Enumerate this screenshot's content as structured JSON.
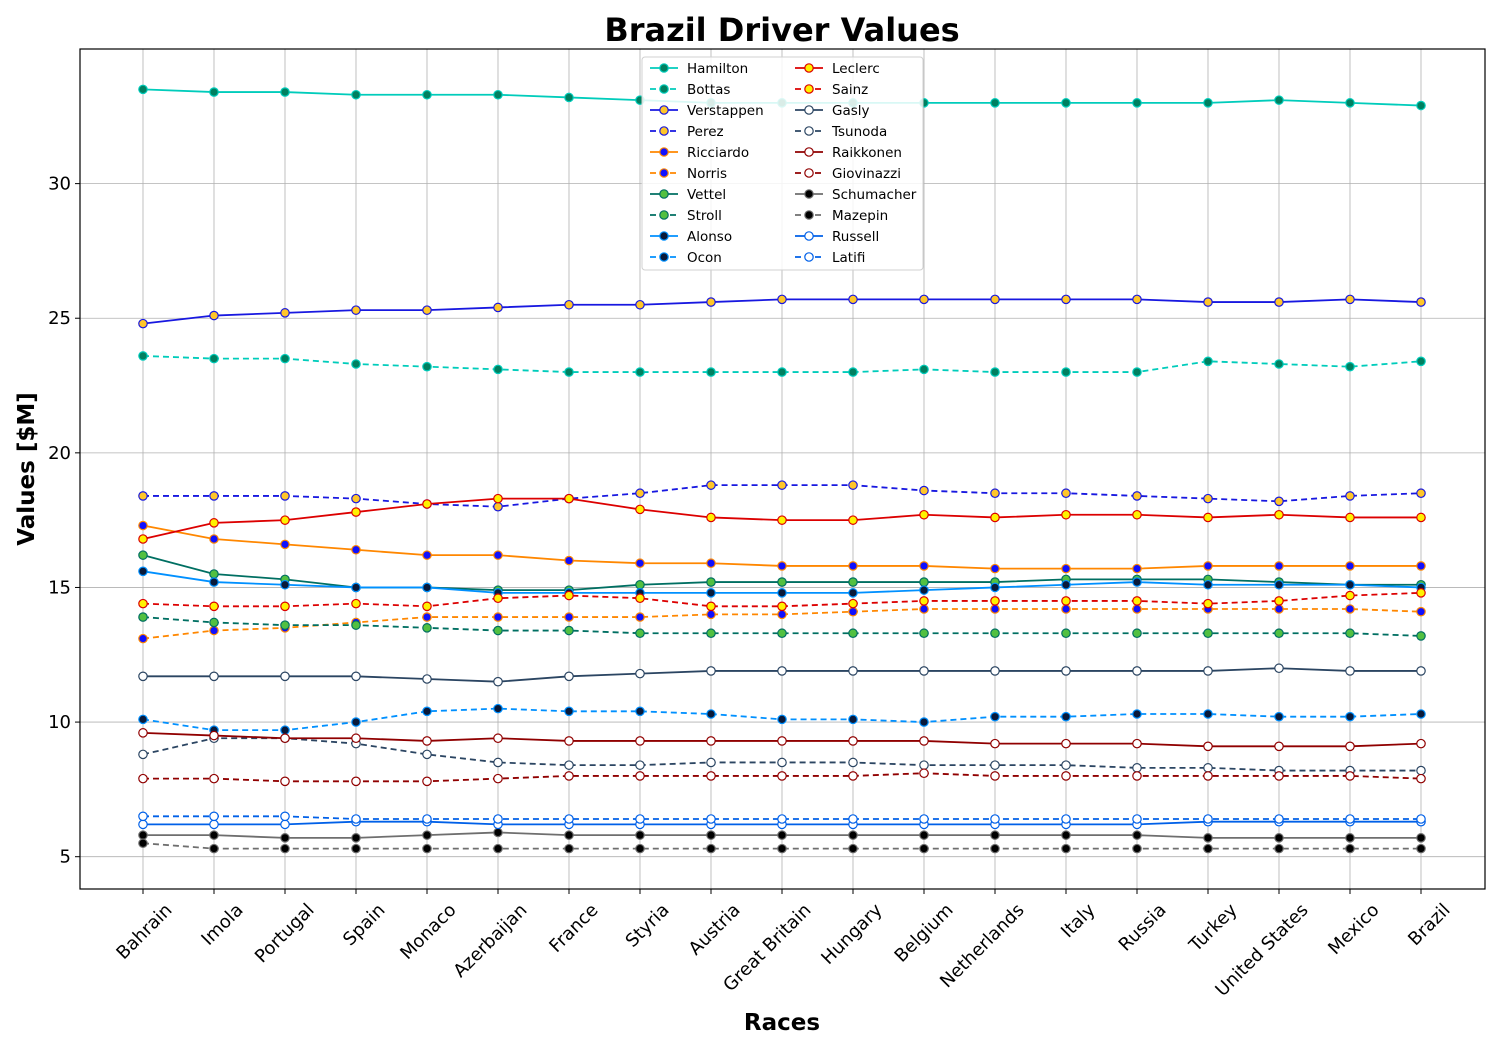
{
  "chart_data": {
    "type": "line",
    "title": "Brazil Driver Values",
    "xlabel": "Races",
    "ylabel": "Values [$M]",
    "categories": [
      "Bahrain",
      "Imola",
      "Portugal",
      "Spain",
      "Monaco",
      "Azerbaijan",
      "France",
      "Styria",
      "Austria",
      "Great Britain",
      "Hungary",
      "Belgium",
      "Netherlands",
      "Italy",
      "Russia",
      "Turkey",
      "United States",
      "Mexico",
      "Brazil"
    ],
    "ylim": [
      3.8,
      35.0
    ],
    "yticks": [
      5,
      10,
      15,
      20,
      25,
      30
    ],
    "grid": true,
    "legend": {
      "placement": "upper center",
      "columns": 2
    },
    "series": [
      {
        "name": "Hamilton",
        "color": "#00ccbb",
        "dashed": false,
        "marker_face": "#008060",
        "values": [
          33.5,
          33.4,
          33.4,
          33.3,
          33.3,
          33.3,
          33.2,
          33.1,
          33.0,
          33.0,
          33.0,
          33.0,
          33.0,
          33.0,
          33.0,
          33.0,
          33.1,
          33.0,
          32.9
        ]
      },
      {
        "name": "Bottas",
        "color": "#00ccbb",
        "dashed": true,
        "marker_face": "#008060",
        "values": [
          23.6,
          23.5,
          23.5,
          23.3,
          23.2,
          23.1,
          23.0,
          23.0,
          23.0,
          23.0,
          23.0,
          23.1,
          23.0,
          23.0,
          23.0,
          23.4,
          23.3,
          23.2,
          23.4
        ]
      },
      {
        "name": "Verstappen",
        "color": "#1818e0",
        "dashed": false,
        "marker_face": "#ffc629",
        "values": [
          24.8,
          25.1,
          25.2,
          25.3,
          25.3,
          25.4,
          25.5,
          25.5,
          25.6,
          25.7,
          25.7,
          25.7,
          25.7,
          25.7,
          25.7,
          25.6,
          25.6,
          25.7,
          25.6
        ]
      },
      {
        "name": "Perez",
        "color": "#1818e0",
        "dashed": true,
        "marker_face": "#ffc629",
        "values": [
          18.4,
          18.4,
          18.4,
          18.3,
          18.1,
          18.0,
          18.3,
          18.5,
          18.8,
          18.8,
          18.8,
          18.6,
          18.5,
          18.5,
          18.4,
          18.3,
          18.2,
          18.4,
          18.5
        ]
      },
      {
        "name": "Ricciardo",
        "color": "#ff8700",
        "dashed": false,
        "marker_face": "#1010ff",
        "values": [
          17.3,
          16.8,
          16.6,
          16.4,
          16.2,
          16.2,
          16.0,
          15.9,
          15.9,
          15.8,
          15.8,
          15.8,
          15.7,
          15.7,
          15.7,
          15.8,
          15.8,
          15.8,
          15.8
        ]
      },
      {
        "name": "Norris",
        "color": "#ff8700",
        "dashed": true,
        "marker_face": "#1010ff",
        "values": [
          13.1,
          13.4,
          13.5,
          13.7,
          13.9,
          13.9,
          13.9,
          13.9,
          14.0,
          14.0,
          14.1,
          14.2,
          14.2,
          14.2,
          14.2,
          14.2,
          14.2,
          14.2,
          14.1
        ]
      },
      {
        "name": "Vettel",
        "color": "#006f62",
        "dashed": false,
        "marker_face": "#52c041",
        "values": [
          16.2,
          15.5,
          15.3,
          15.0,
          15.0,
          14.9,
          14.9,
          15.1,
          15.2,
          15.2,
          15.2,
          15.2,
          15.2,
          15.3,
          15.3,
          15.3,
          15.2,
          15.1,
          15.1
        ]
      },
      {
        "name": "Stroll",
        "color": "#006f62",
        "dashed": true,
        "marker_face": "#52c041",
        "values": [
          13.9,
          13.7,
          13.6,
          13.6,
          13.5,
          13.4,
          13.4,
          13.3,
          13.3,
          13.3,
          13.3,
          13.3,
          13.3,
          13.3,
          13.3,
          13.3,
          13.3,
          13.3,
          13.2
        ]
      },
      {
        "name": "Alonso",
        "color": "#0090ff",
        "dashed": false,
        "marker_face": "#0a1a3a",
        "values": [
          15.6,
          15.2,
          15.1,
          15.0,
          15.0,
          14.8,
          14.8,
          14.8,
          14.8,
          14.8,
          14.8,
          14.9,
          15.0,
          15.1,
          15.2,
          15.1,
          15.1,
          15.1,
          15.0
        ]
      },
      {
        "name": "Ocon",
        "color": "#0090ff",
        "dashed": true,
        "marker_face": "#0a1a3a",
        "values": [
          10.1,
          9.7,
          9.7,
          10.0,
          10.4,
          10.5,
          10.4,
          10.4,
          10.3,
          10.1,
          10.1,
          10.0,
          10.2,
          10.2,
          10.3,
          10.3,
          10.2,
          10.2,
          10.3
        ]
      },
      {
        "name": "Leclerc",
        "color": "#dc0000",
        "dashed": false,
        "marker_face": "#fff200",
        "values": [
          16.8,
          17.4,
          17.5,
          17.8,
          18.1,
          18.3,
          18.3,
          17.9,
          17.6,
          17.5,
          17.5,
          17.7,
          17.6,
          17.7,
          17.7,
          17.6,
          17.7,
          17.6,
          17.6
        ]
      },
      {
        "name": "Sainz",
        "color": "#dc0000",
        "dashed": true,
        "marker_face": "#fff200",
        "values": [
          14.4,
          14.3,
          14.3,
          14.4,
          14.3,
          14.6,
          14.7,
          14.6,
          14.3,
          14.3,
          14.4,
          14.5,
          14.5,
          14.5,
          14.5,
          14.4,
          14.5,
          14.7,
          14.8
        ]
      },
      {
        "name": "Gasly",
        "color": "#2b4562",
        "dashed": false,
        "marker_face": "#ffffff",
        "values": [
          11.7,
          11.7,
          11.7,
          11.7,
          11.6,
          11.5,
          11.7,
          11.8,
          11.9,
          11.9,
          11.9,
          11.9,
          11.9,
          11.9,
          11.9,
          11.9,
          12.0,
          11.9,
          11.9
        ]
      },
      {
        "name": "Tsunoda",
        "color": "#2b4562",
        "dashed": true,
        "marker_face": "#ffffff",
        "values": [
          8.8,
          9.4,
          9.4,
          9.2,
          8.8,
          8.5,
          8.4,
          8.4,
          8.5,
          8.5,
          8.5,
          8.4,
          8.4,
          8.4,
          8.3,
          8.3,
          8.2,
          8.2,
          8.2
        ]
      },
      {
        "name": "Raikkonen",
        "color": "#900000",
        "dashed": false,
        "marker_face": "#ffffff",
        "values": [
          9.6,
          9.5,
          9.4,
          9.4,
          9.3,
          9.4,
          9.3,
          9.3,
          9.3,
          9.3,
          9.3,
          9.3,
          9.2,
          9.2,
          9.2,
          9.1,
          9.1,
          9.1,
          9.2
        ]
      },
      {
        "name": "Giovinazzi",
        "color": "#900000",
        "dashed": true,
        "marker_face": "#ffffff",
        "values": [
          7.9,
          7.9,
          7.8,
          7.8,
          7.8,
          7.9,
          8.0,
          8.0,
          8.0,
          8.0,
          8.0,
          8.1,
          8.0,
          8.0,
          8.0,
          8.0,
          8.0,
          8.0,
          7.9
        ]
      },
      {
        "name": "Schumacher",
        "color": "#6e6e6e",
        "dashed": false,
        "marker_face": "#000000",
        "values": [
          5.8,
          5.8,
          5.7,
          5.7,
          5.8,
          5.9,
          5.8,
          5.8,
          5.8,
          5.8,
          5.8,
          5.8,
          5.8,
          5.8,
          5.8,
          5.7,
          5.7,
          5.7,
          5.7
        ]
      },
      {
        "name": "Mazepin",
        "color": "#6e6e6e",
        "dashed": true,
        "marker_face": "#000000",
        "values": [
          5.5,
          5.3,
          5.3,
          5.3,
          5.3,
          5.3,
          5.3,
          5.3,
          5.3,
          5.3,
          5.3,
          5.3,
          5.3,
          5.3,
          5.3,
          5.3,
          5.3,
          5.3,
          5.3
        ]
      },
      {
        "name": "Russell",
        "color": "#0060e8",
        "dashed": false,
        "marker_face": "#ffffff",
        "values": [
          6.2,
          6.2,
          6.2,
          6.3,
          6.3,
          6.2,
          6.2,
          6.2,
          6.2,
          6.2,
          6.2,
          6.2,
          6.2,
          6.2,
          6.2,
          6.3,
          6.3,
          6.3,
          6.3
        ]
      },
      {
        "name": "Latifi",
        "color": "#0060e8",
        "dashed": true,
        "marker_face": "#ffffff",
        "values": [
          6.5,
          6.5,
          6.5,
          6.4,
          6.4,
          6.4,
          6.4,
          6.4,
          6.4,
          6.4,
          6.4,
          6.4,
          6.4,
          6.4,
          6.4,
          6.4,
          6.4,
          6.4,
          6.4
        ]
      }
    ]
  }
}
